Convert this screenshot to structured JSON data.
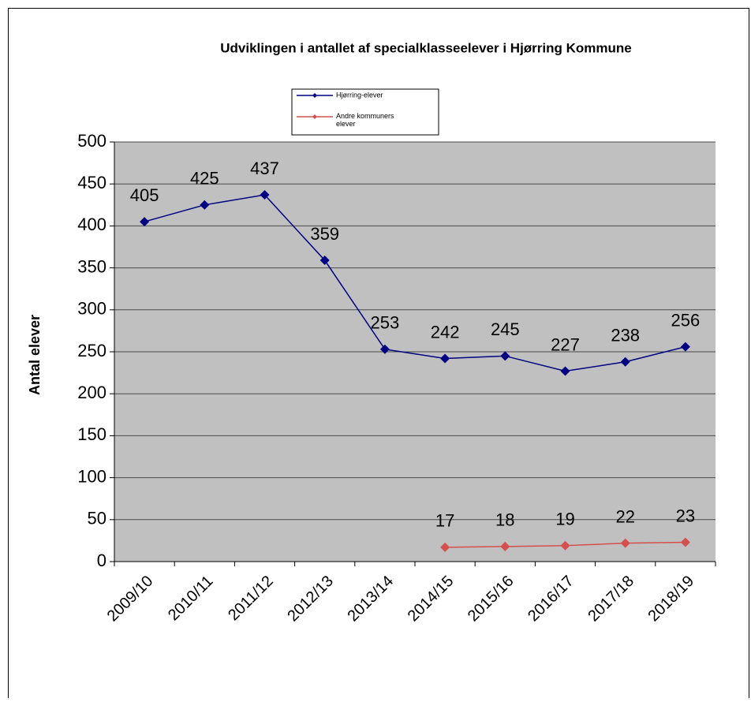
{
  "chart_data": {
    "type": "line",
    "title": "Udviklingen  i antallet af specialklasseelever i Hjørring  Kommune",
    "y_label": "Antal elever",
    "categories": [
      "2009/10",
      "2010/11",
      "2011/12",
      "2012/13",
      "2013/14",
      "2014/15",
      "2015/16",
      "2016/17",
      "2017/18",
      "2018/19"
    ],
    "series": [
      {
        "name": "Hjørring-elever",
        "color": "#000080",
        "values": [
          405,
          425,
          437,
          359,
          253,
          242,
          245,
          227,
          238,
          256
        ]
      },
      {
        "name": "Andre kommuners elever",
        "color": "#d4504f",
        "values": [
          null,
          null,
          null,
          null,
          null,
          17,
          18,
          19,
          22,
          23
        ]
      }
    ],
    "ylim": [
      0,
      500
    ],
    "yticks": [
      0,
      50,
      100,
      150,
      200,
      250,
      300,
      350,
      400,
      450,
      500
    ],
    "grid": true,
    "background": "#c0c0c0"
  }
}
